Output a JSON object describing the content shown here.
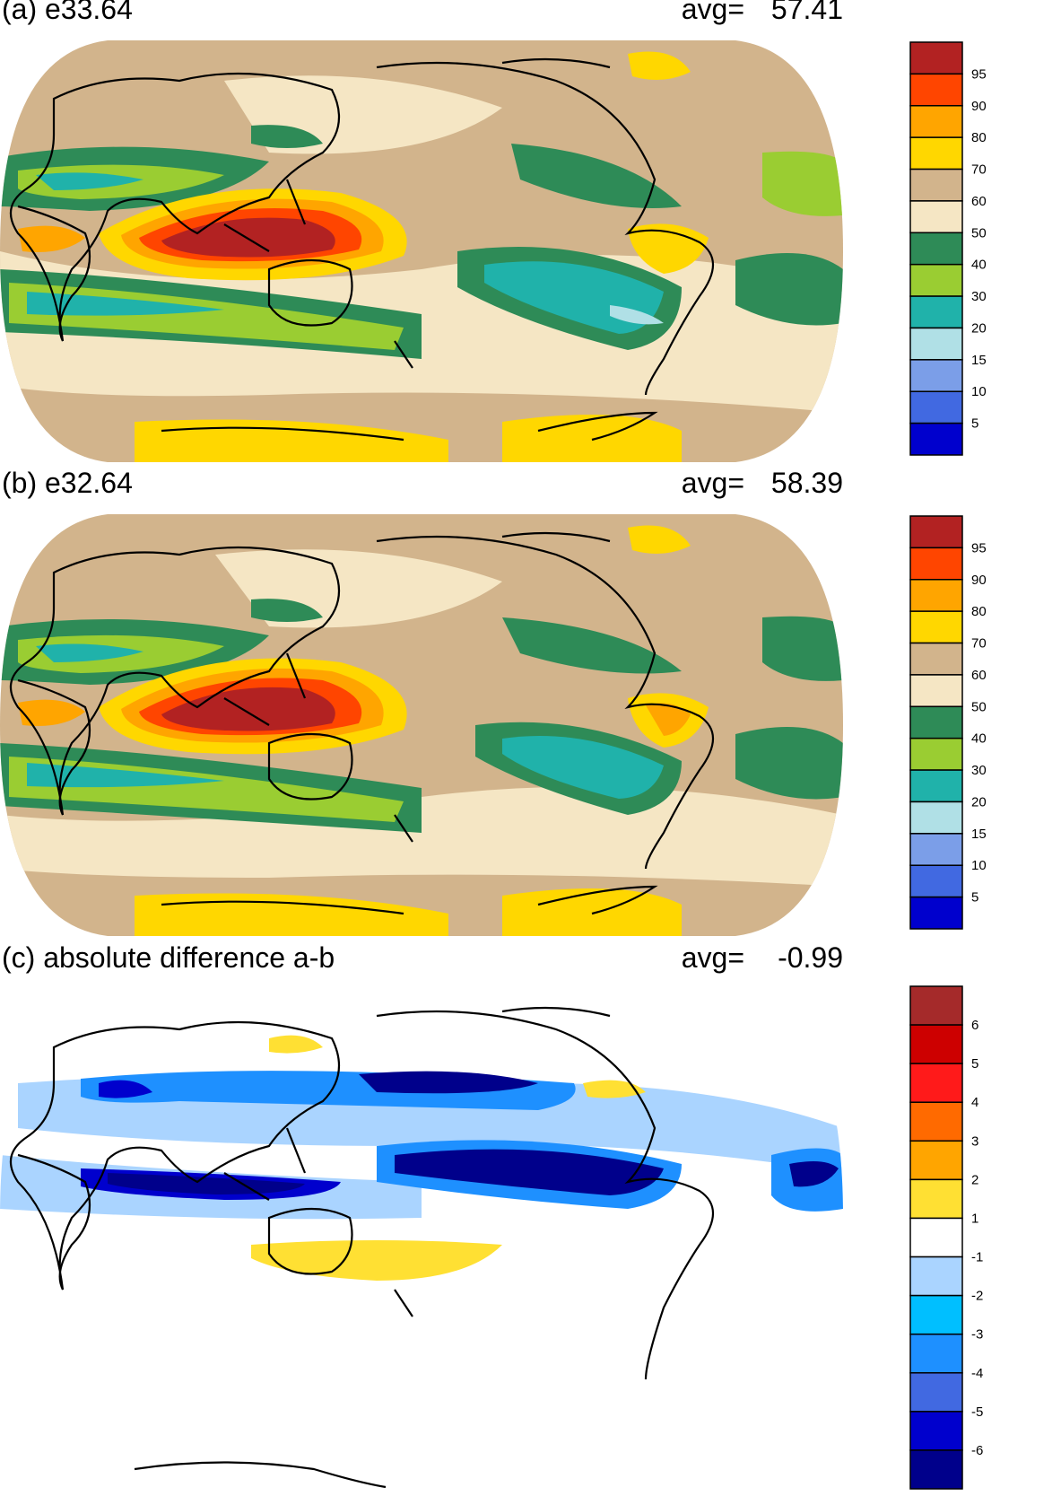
{
  "panels": [
    {
      "title": "(a) e33.64",
      "avg_label": "avg=",
      "avg_value": "57.41",
      "colorbar": {
        "labels": [
          "95",
          "90",
          "80",
          "70",
          "60",
          "50",
          "40",
          "30",
          "20",
          "15",
          "10",
          "5"
        ],
        "colors": [
          "#b22222",
          "#ff4500",
          "#ffa500",
          "#ffd700",
          "#d2b48c",
          "#f5e6c4",
          "#2e8b57",
          "#9acd32",
          "#20b2aa",
          "#b0e0e6",
          "#7b9ee8",
          "#4169e1",
          "#0000cd"
        ]
      }
    },
    {
      "title": "(b) e32.64",
      "avg_label": "avg=",
      "avg_value": "58.39",
      "colorbar": {
        "labels": [
          "95",
          "90",
          "80",
          "70",
          "60",
          "50",
          "40",
          "30",
          "20",
          "15",
          "10",
          "5"
        ],
        "colors": [
          "#b22222",
          "#ff4500",
          "#ffa500",
          "#ffd700",
          "#d2b48c",
          "#f5e6c4",
          "#2e8b57",
          "#9acd32",
          "#20b2aa",
          "#b0e0e6",
          "#7b9ee8",
          "#4169e1",
          "#0000cd"
        ]
      }
    },
    {
      "title": "(c) absolute difference a-b",
      "avg_label": "avg=",
      "avg_value": "-0.99",
      "colorbar": {
        "labels": [
          "6",
          "5",
          "4",
          "3",
          "2",
          "1",
          "-1",
          "-2",
          "-3",
          "-4",
          "-5",
          "-6"
        ],
        "colors": [
          "#a52a2a",
          "#cd0000",
          "#ff1a1a",
          "#ff6a00",
          "#ffa500",
          "#ffe033",
          "#ffffff",
          "#aad4ff",
          "#00bfff",
          "#1e90ff",
          "#4169e1",
          "#0000cd",
          "#00008b"
        ]
      }
    }
  ]
}
